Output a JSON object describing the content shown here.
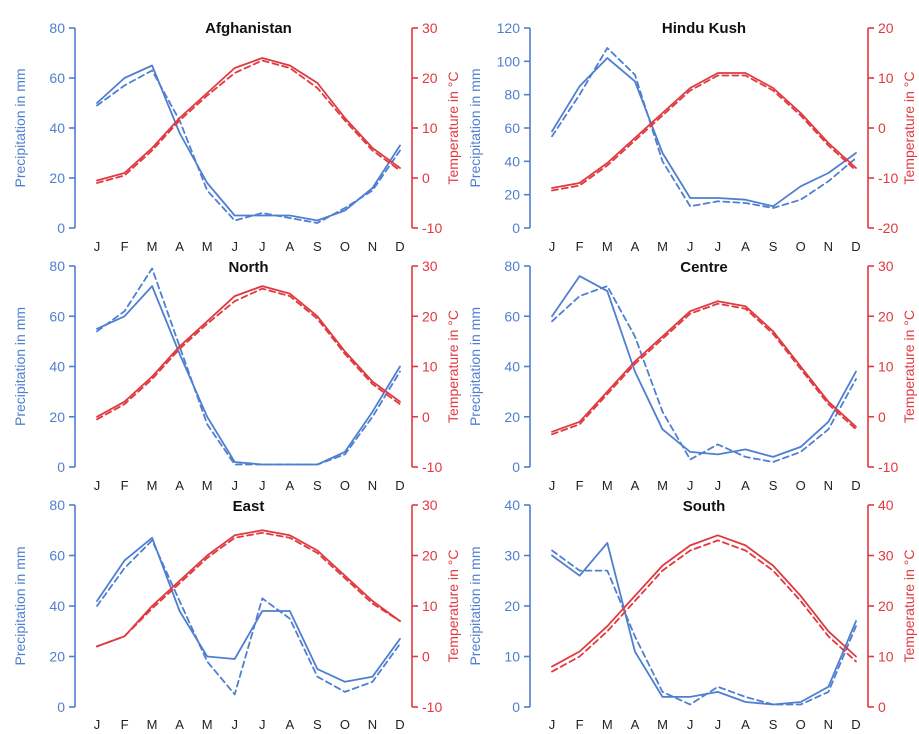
{
  "colors": {
    "precipitation": "#4f7fd0",
    "temperature": "#e0393f"
  },
  "chart_data": [
    {
      "type": "line",
      "title": "Afghanistan",
      "categories": [
        "J",
        "F",
        "M",
        "A",
        "M",
        "J",
        "J",
        "A",
        "S",
        "O",
        "N",
        "D"
      ],
      "ylabel": "Precipitation in mm",
      "ylabel_right": "Temperature in °C",
      "ylim": [
        0,
        80
      ],
      "yticks": [
        0,
        20,
        40,
        60,
        80
      ],
      "ylim_right": [
        -10,
        30
      ],
      "yticks_right": [
        -10,
        0,
        10,
        20,
        30
      ],
      "series": [
        {
          "axis": "left",
          "style": "solid",
          "values": [
            50,
            60,
            65,
            38,
            18,
            5,
            5,
            5,
            3,
            7,
            16,
            33
          ]
        },
        {
          "axis": "left",
          "style": "dashed",
          "values": [
            49,
            57,
            63,
            43,
            15,
            3,
            6,
            4,
            2,
            8,
            15,
            31
          ]
        },
        {
          "axis": "right",
          "style": "solid",
          "values": [
            -0.5,
            1,
            6,
            12,
            17,
            22,
            24,
            22.5,
            19,
            12,
            6,
            2
          ]
        },
        {
          "axis": "right",
          "style": "dashed",
          "values": [
            -1,
            0.5,
            5.5,
            11.5,
            16.5,
            21,
            23.5,
            22,
            18,
            11.5,
            5.5,
            1.5
          ]
        }
      ]
    },
    {
      "type": "line",
      "title": "Hindu Kush",
      "categories": [
        "J",
        "F",
        "M",
        "A",
        "M",
        "J",
        "J",
        "A",
        "S",
        "O",
        "N",
        "D"
      ],
      "ylabel": "Precipitation in mm",
      "ylabel_right": "Temperature in °C",
      "ylim": [
        0,
        120
      ],
      "yticks": [
        0,
        20,
        40,
        60,
        80,
        100,
        120
      ],
      "ylim_right": [
        -20,
        20
      ],
      "yticks_right": [
        -20,
        -10,
        0,
        10,
        20
      ],
      "series": [
        {
          "axis": "left",
          "style": "solid",
          "values": [
            58,
            85,
            102,
            88,
            45,
            18,
            18,
            17,
            13,
            25,
            33,
            45
          ]
        },
        {
          "axis": "left",
          "style": "dashed",
          "values": [
            55,
            80,
            108,
            92,
            40,
            13,
            16,
            15,
            12,
            17,
            28,
            42
          ]
        },
        {
          "axis": "right",
          "style": "solid",
          "values": [
            -12,
            -11,
            -7,
            -2,
            3,
            8,
            11,
            11,
            8,
            3,
            -3,
            -8
          ]
        },
        {
          "axis": "right",
          "style": "dashed",
          "values": [
            -12.5,
            -11.5,
            -7.5,
            -2.5,
            2.5,
            7.5,
            10.5,
            10.5,
            7.5,
            2.5,
            -3.5,
            -8.5
          ]
        }
      ]
    },
    {
      "type": "line",
      "title": "North",
      "categories": [
        "J",
        "F",
        "M",
        "A",
        "M",
        "J",
        "J",
        "A",
        "S",
        "O",
        "N",
        "D"
      ],
      "ylabel": "Precipitation in mm",
      "ylabel_right": "Temperature in °C",
      "ylim": [
        0,
        80
      ],
      "yticks": [
        0,
        20,
        40,
        60,
        80
      ],
      "ylim_right": [
        -10,
        30
      ],
      "yticks_right": [
        -10,
        0,
        10,
        20,
        30
      ],
      "series": [
        {
          "axis": "left",
          "style": "solid",
          "values": [
            55,
            60,
            72,
            45,
            20,
            2,
            1,
            1,
            1,
            6,
            22,
            40
          ]
        },
        {
          "axis": "left",
          "style": "dashed",
          "values": [
            54,
            62,
            79,
            48,
            17,
            1,
            1,
            1,
            1,
            5,
            20,
            38
          ]
        },
        {
          "axis": "right",
          "style": "solid",
          "values": [
            0,
            3,
            8,
            14,
            19,
            24,
            26,
            24.5,
            20,
            13,
            7,
            3
          ]
        },
        {
          "axis": "right",
          "style": "dashed",
          "values": [
            -0.5,
            2.5,
            7.5,
            13.5,
            18.5,
            23,
            25.5,
            24,
            19.5,
            12.5,
            6.5,
            2.5
          ]
        }
      ]
    },
    {
      "type": "line",
      "title": "Centre",
      "categories": [
        "J",
        "F",
        "M",
        "A",
        "M",
        "J",
        "J",
        "A",
        "S",
        "O",
        "N",
        "D"
      ],
      "ylabel": "Precipitation in mm",
      "ylabel_right": "Temperature in °C",
      "ylim": [
        0,
        80
      ],
      "yticks": [
        0,
        20,
        40,
        60,
        80
      ],
      "ylim_right": [
        -10,
        30
      ],
      "yticks_right": [
        -10,
        0,
        10,
        20,
        30
      ],
      "series": [
        {
          "axis": "left",
          "style": "solid",
          "values": [
            60,
            76,
            70,
            38,
            15,
            6,
            5,
            7,
            4,
            8,
            18,
            38
          ]
        },
        {
          "axis": "left",
          "style": "dashed",
          "values": [
            58,
            68,
            72,
            52,
            22,
            3,
            9,
            4,
            2,
            6,
            15,
            35
          ]
        },
        {
          "axis": "right",
          "style": "solid",
          "values": [
            -3,
            -1,
            5,
            11,
            16,
            21,
            23,
            22,
            17,
            10,
            3,
            -2
          ]
        },
        {
          "axis": "right",
          "style": "dashed",
          "values": [
            -3.5,
            -1.5,
            4.5,
            10.5,
            15.5,
            20.5,
            22.5,
            21.5,
            16.5,
            9.5,
            2.5,
            -2.5
          ]
        }
      ]
    },
    {
      "type": "line",
      "title": "East",
      "categories": [
        "J",
        "F",
        "M",
        "A",
        "M",
        "J",
        "J",
        "A",
        "S",
        "O",
        "N",
        "D"
      ],
      "ylabel": "Precipitation in mm",
      "ylabel_right": "Temperature in °C",
      "ylim": [
        0,
        80
      ],
      "yticks": [
        0,
        20,
        40,
        60,
        80
      ],
      "ylim_right": [
        -10,
        30
      ],
      "yticks_right": [
        -10,
        0,
        10,
        20,
        30
      ],
      "series": [
        {
          "axis": "left",
          "style": "solid",
          "values": [
            42,
            58,
            67,
            38,
            20,
            19,
            38,
            38,
            15,
            10,
            12,
            27
          ]
        },
        {
          "axis": "left",
          "style": "dashed",
          "values": [
            40,
            55,
            66,
            42,
            18,
            5,
            43,
            35,
            12,
            6,
            10,
            25
          ]
        },
        {
          "axis": "right",
          "style": "solid",
          "values": [
            2,
            4,
            10,
            15,
            20,
            24,
            25,
            24,
            21,
            16,
            11,
            7
          ]
        },
        {
          "axis": "right",
          "style": "dashed",
          "values": [
            2,
            4,
            9.5,
            14.5,
            19.5,
            23.5,
            24.5,
            23.5,
            20.5,
            15.5,
            10.5,
            7
          ]
        }
      ]
    },
    {
      "type": "line",
      "title": "South",
      "categories": [
        "J",
        "F",
        "M",
        "A",
        "M",
        "J",
        "J",
        "A",
        "S",
        "O",
        "N",
        "D"
      ],
      "ylabel": "Precipitation in mm",
      "ylabel_right": "Temperature in °C",
      "ylim": [
        0,
        40
      ],
      "yticks": [
        0,
        10,
        20,
        30,
        40
      ],
      "ylim_right": [
        0,
        40
      ],
      "yticks_right": [
        0,
        10,
        20,
        30,
        40
      ],
      "series": [
        {
          "axis": "left",
          "style": "solid",
          "values": [
            30,
            26,
            32.5,
            11,
            2,
            2,
            3,
            1,
            0.5,
            1,
            4,
            17
          ]
        },
        {
          "axis": "left",
          "style": "dashed",
          "values": [
            31,
            27,
            27,
            14,
            3,
            0.5,
            4,
            2,
            0.5,
            0.5,
            3,
            16
          ]
        },
        {
          "axis": "right",
          "style": "solid",
          "values": [
            8,
            11,
            16,
            22,
            28,
            32,
            34,
            32,
            28,
            22,
            15,
            10
          ]
        },
        {
          "axis": "right",
          "style": "dashed",
          "values": [
            7,
            10,
            15,
            21,
            27,
            31,
            33,
            31,
            27,
            21,
            14,
            9
          ]
        }
      ]
    }
  ]
}
